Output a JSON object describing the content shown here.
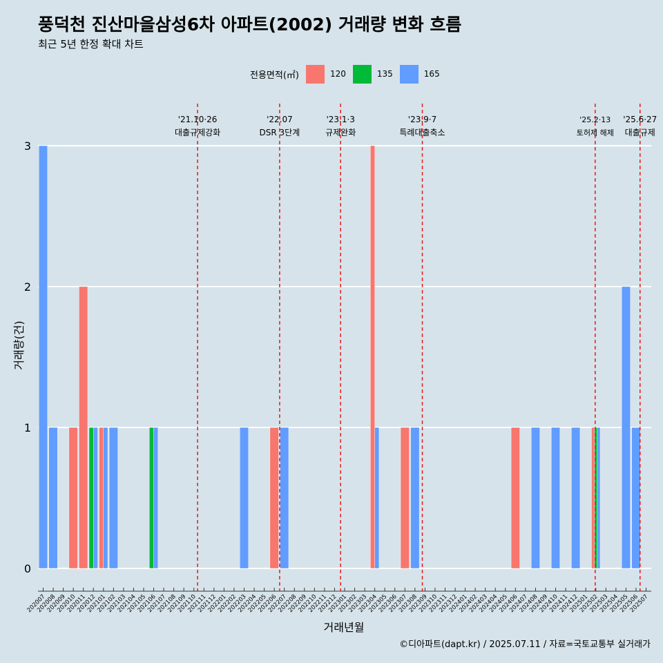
{
  "title": "풍덕천 진산마을삼성6차 아파트(2002) 거래량 변화 흐름",
  "subtitle": "최근 5년 한정 확대 차트",
  "caption": "©디아파트(dapt.kr) / 2025.07.11 / 자료=국토교통부 실거래가",
  "legend": {
    "title": "전용면적(㎡)",
    "items": [
      {
        "label": "120",
        "color": "#f8766d"
      },
      {
        "label": "135",
        "color": "#00ba38"
      },
      {
        "label": "165",
        "color": "#619cff"
      }
    ]
  },
  "chart_data": {
    "type": "bar",
    "xlabel": "거래년월",
    "ylabel": "거래량(건)",
    "ylim": [
      0,
      3
    ],
    "yticks": [
      0,
      1,
      2,
      3
    ],
    "grid": true,
    "categories": [
      "202007",
      "202008",
      "202009",
      "202010",
      "202011",
      "202012",
      "202101",
      "202102",
      "202103",
      "202104",
      "202105",
      "202106",
      "202107",
      "202108",
      "202109",
      "202110",
      "202111",
      "202112",
      "202201",
      "202202",
      "202203",
      "202204",
      "202205",
      "202206",
      "202207",
      "202208",
      "202209",
      "202210",
      "202211",
      "202212",
      "202301",
      "202302",
      "202303",
      "202304",
      "202305",
      "202306",
      "202307",
      "202308",
      "202309",
      "202310",
      "202311",
      "202312",
      "202401",
      "202402",
      "202403",
      "202404",
      "202405",
      "202406",
      "202407",
      "202408",
      "202409",
      "202410",
      "202411",
      "202412",
      "202501",
      "202502",
      "202503",
      "202504",
      "202505",
      "202506",
      "202507"
    ],
    "series": [
      {
        "name": "120",
        "color": "#f8766d",
        "points": [
          [
            "202010",
            1
          ],
          [
            "202011",
            2
          ],
          [
            "202101",
            1
          ],
          [
            "202206",
            1
          ],
          [
            "202304",
            3
          ],
          [
            "202307",
            1
          ],
          [
            "202406",
            1
          ],
          [
            "202502",
            1
          ]
        ]
      },
      {
        "name": "135",
        "color": "#00ba38",
        "points": [
          [
            "202012",
            1
          ],
          [
            "202106",
            1
          ],
          [
            "202502",
            1
          ]
        ]
      },
      {
        "name": "165",
        "color": "#619cff",
        "points": [
          [
            "202007",
            3
          ],
          [
            "202008",
            1
          ],
          [
            "202012",
            1
          ],
          [
            "202101",
            1
          ],
          [
            "202102",
            1
          ],
          [
            "202106",
            1
          ],
          [
            "202203",
            1
          ],
          [
            "202207",
            1
          ],
          [
            "202304",
            1
          ],
          [
            "202308",
            1
          ],
          [
            "202408",
            1
          ],
          [
            "202410",
            1
          ],
          [
            "202412",
            1
          ],
          [
            "202502",
            1
          ],
          [
            "202505",
            2
          ],
          [
            "202506",
            1
          ]
        ]
      }
    ],
    "annotations": [
      {
        "date_label": "'21.10·26",
        "text": "대출규제강화",
        "month": "202110",
        "day": 26
      },
      {
        "date_label": "'22.07",
        "text": "DSR 3단계",
        "month": "202207",
        "day": 1
      },
      {
        "date_label": "'23.1·3",
        "text": "규제완화",
        "month": "202301",
        "day": 3
      },
      {
        "date_label": "'23.9·7",
        "text": "특례대출축소",
        "month": "202309",
        "day": 7
      },
      {
        "date_label": "'25.2·13",
        "text": "토허제 해제",
        "month": "202502",
        "day": 13
      },
      {
        "date_label": "'25.6·27",
        "text": "대출규제",
        "month": "202506",
        "day": 27
      }
    ]
  }
}
